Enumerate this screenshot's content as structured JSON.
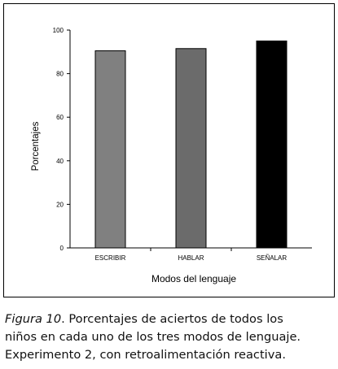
{
  "chart_data": {
    "type": "bar",
    "categories": [
      "ESCRIBIR",
      "HABLAR",
      "SEÑALAR"
    ],
    "values": [
      90.5,
      91.5,
      95
    ],
    "bar_colors": [
      "#808080",
      "#6b6b6b",
      "#000000"
    ],
    "xlabel": "Modos del lenguaje",
    "ylabel": "Porcentajes",
    "ylim": [
      0,
      100
    ],
    "yticks": [
      0,
      20,
      40,
      60,
      80,
      100
    ],
    "grid": false,
    "legend": "none"
  },
  "caption": {
    "label": "Figura 10",
    "line1_rest": ". Porcentajes de aciertos de todos los",
    "line2": "niños en cada uno de los tres modos de lenguaje.",
    "line3": "Experimento 2, con retroalimentación reactiva."
  }
}
